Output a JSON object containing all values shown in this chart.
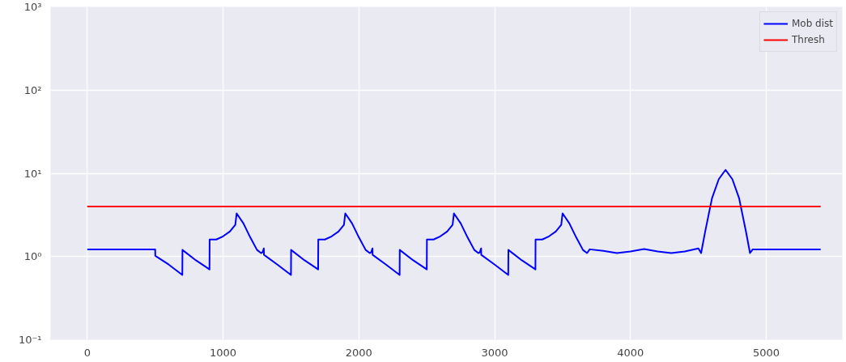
{
  "chart_data": {
    "type": "line",
    "log": "y",
    "grid": true,
    "legend": "top right",
    "marker": "none",
    "line_style": "solid",
    "xlim": [
      -270,
      5560
    ],
    "ylim": [
      0.1,
      1000
    ],
    "xticks": [
      0,
      1000,
      2000,
      3000,
      4000,
      5000
    ],
    "yticks": [
      {
        "value": 0.1,
        "label": "10⁻¹"
      },
      {
        "value": 1,
        "label": "10⁰"
      },
      {
        "value": 10,
        "label": "10¹"
      },
      {
        "value": 100,
        "label": "10²"
      },
      {
        "value": 1000,
        "label": "10³"
      }
    ],
    "series": [
      {
        "name": "Mob dist",
        "color": "#0000ff",
        "x": [
          0,
          500,
          501,
          600,
          700,
          701,
          800,
          900,
          901,
          950,
          1000,
          1050,
          1090,
          1100,
          1150,
          1200,
          1250,
          1280,
          1290,
          1300,
          1301,
          1400,
          1500,
          1501,
          1600,
          1700,
          1701,
          1750,
          1800,
          1850,
          1890,
          1900,
          1950,
          2000,
          2050,
          2080,
          2090,
          2100,
          2101,
          2200,
          2300,
          2301,
          2400,
          2500,
          2501,
          2550,
          2600,
          2650,
          2690,
          2700,
          2750,
          2800,
          2850,
          2880,
          2890,
          2900,
          2901,
          3000,
          3100,
          3101,
          3200,
          3300,
          3301,
          3350,
          3400,
          3450,
          3490,
          3500,
          3550,
          3600,
          3650,
          3680,
          3700,
          3800,
          3900,
          4000,
          4100,
          4200,
          4300,
          4400,
          4500,
          4520,
          4550,
          4600,
          4650,
          4700,
          4750,
          4800,
          4850,
          4880,
          4900,
          5400
        ],
        "values": [
          1.22,
          1.22,
          1.02,
          0.8,
          0.6,
          1.2,
          0.9,
          0.7,
          1.6,
          1.6,
          1.75,
          2.0,
          2.4,
          3.3,
          2.5,
          1.7,
          1.2,
          1.1,
          1.12,
          1.25,
          1.05,
          0.8,
          0.6,
          1.2,
          0.9,
          0.7,
          1.6,
          1.6,
          1.75,
          2.0,
          2.4,
          3.3,
          2.5,
          1.7,
          1.2,
          1.1,
          1.12,
          1.25,
          1.05,
          0.8,
          0.6,
          1.2,
          0.9,
          0.7,
          1.6,
          1.6,
          1.75,
          2.0,
          2.4,
          3.3,
          2.5,
          1.7,
          1.2,
          1.1,
          1.12,
          1.25,
          1.05,
          0.8,
          0.6,
          1.2,
          0.9,
          0.7,
          1.6,
          1.6,
          1.75,
          2.0,
          2.4,
          3.3,
          2.5,
          1.7,
          1.2,
          1.1,
          1.22,
          1.17,
          1.1,
          1.15,
          1.23,
          1.15,
          1.1,
          1.15,
          1.25,
          1.1,
          2.0,
          5.0,
          8.5,
          11,
          8.5,
          5.0,
          2.0,
          1.1,
          1.22,
          1.22
        ]
      },
      {
        "name": "Thresh",
        "color": "#ff0000",
        "x": [
          0,
          5400
        ],
        "values": [
          4,
          4
        ]
      }
    ]
  }
}
